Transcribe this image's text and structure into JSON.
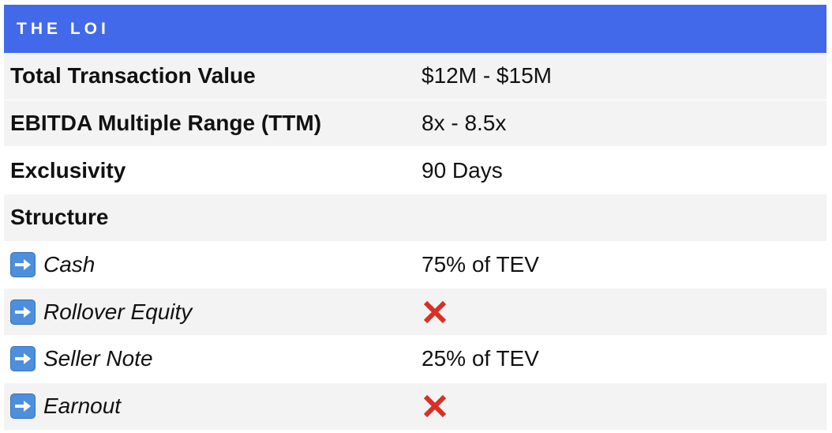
{
  "header": {
    "title": "THE LOI"
  },
  "colors": {
    "header_bg": "#4169e9",
    "row_alt_bg": "#f3f3f3",
    "arrow_icon": "#4d8fdc",
    "cross": "#d93025"
  },
  "rows": [
    {
      "label": "Total Transaction Value",
      "value": "$12M - $15M"
    },
    {
      "label": "EBITDA Multiple Range (TTM)",
      "value": "8x - 8.5x"
    },
    {
      "label": "Exclusivity",
      "value": "90 Days"
    },
    {
      "label": "Structure",
      "value": ""
    },
    {
      "label": "Cash",
      "value": "75% of TEV",
      "icon": "right-arrow-icon"
    },
    {
      "label": "Rollover Equity",
      "value_icon": "cross-mark-icon",
      "icon": "right-arrow-icon"
    },
    {
      "label": "Seller Note",
      "value": "25% of TEV",
      "icon": "right-arrow-icon"
    },
    {
      "label": "Earnout",
      "value_icon": "cross-mark-icon",
      "icon": "right-arrow-icon"
    }
  ]
}
